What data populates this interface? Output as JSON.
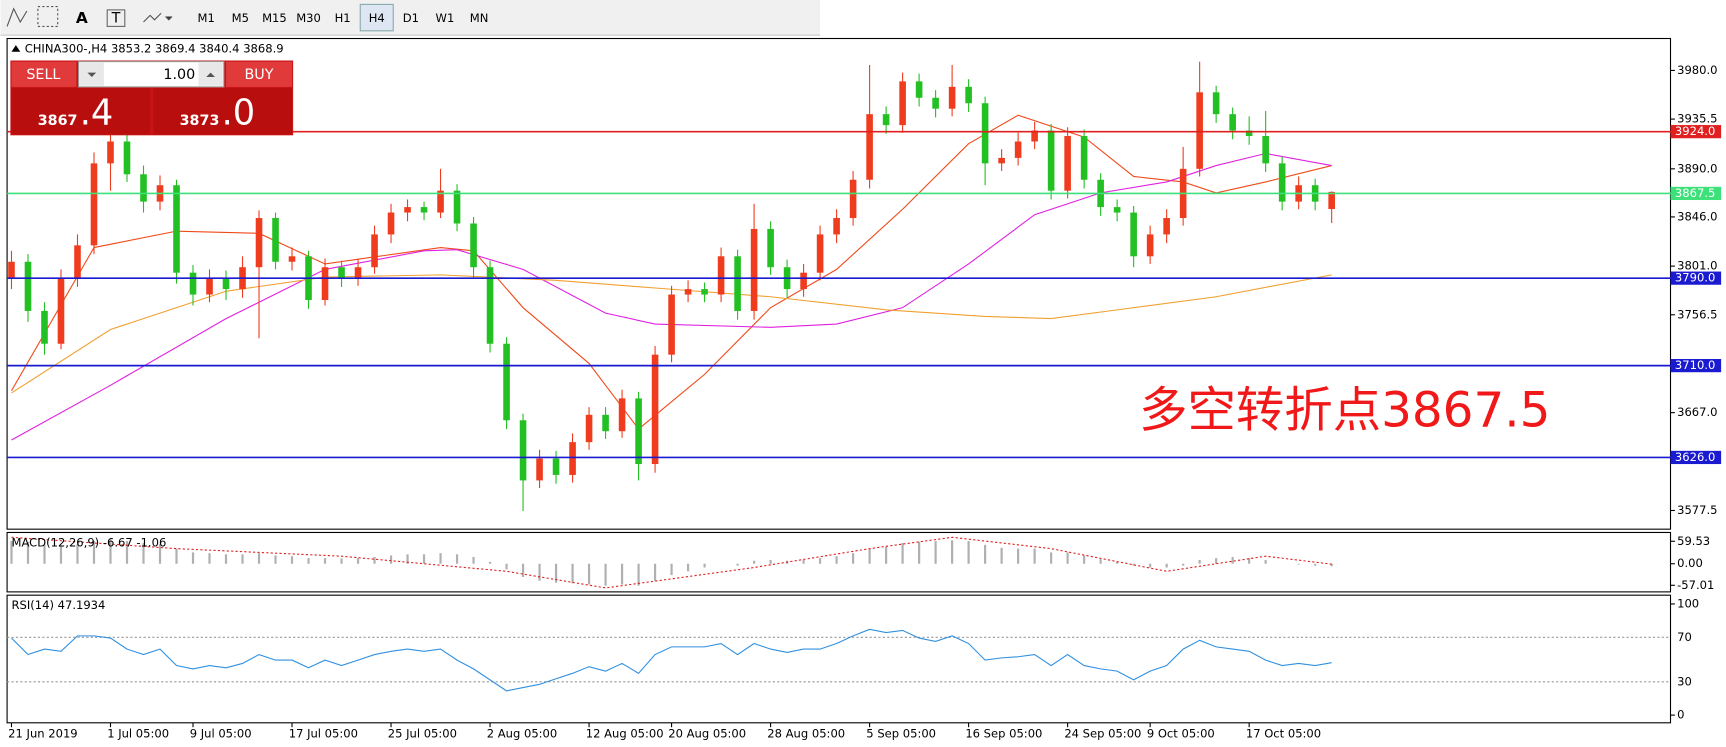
{
  "toolbar": {
    "tools": [
      "A",
      "T"
    ],
    "periods": [
      "M1",
      "M5",
      "M15",
      "M30",
      "H1",
      "H4",
      "D1",
      "W1",
      "MN"
    ],
    "active": "H4"
  },
  "trade_panel": {
    "sell": "SELL",
    "buy": "BUY",
    "lot": "1.00",
    "sell_price": {
      "small": "3867",
      "big": ".4"
    },
    "buy_price": {
      "small": "3873",
      "big": ".0"
    }
  },
  "chart_data": {
    "type": "candlestick",
    "title": "CHINA300-,H4",
    "up_color": "#f03c1e",
    "down_color": "#22c022",
    "ylim": [
      3560.4,
      4009.2
    ],
    "yticks": [
      {
        "value": 3980,
        "label": "3980.0"
      },
      3935.5,
      {
        "value": 3890,
        "label": "3890.0"
      },
      {
        "value": 3846,
        "label": "3846.0"
      },
      {
        "value": 3801,
        "label": "3801.0"
      },
      3756.5,
      {
        "value": 3667,
        "label": "3667.0"
      },
      3577.5
    ],
    "categories": [
      "21 Jun 2019",
      null,
      null,
      null,
      null,
      null,
      "1 Jul 05:00",
      null,
      null,
      null,
      null,
      "9 Jul 05:00",
      null,
      null,
      null,
      null,
      null,
      "17 Jul 05:00",
      null,
      null,
      null,
      null,
      null,
      "25 Jul 05:00",
      null,
      null,
      null,
      null,
      null,
      "2 Aug 05:00",
      null,
      null,
      null,
      null,
      null,
      "12 Aug 05:00",
      null,
      null,
      null,
      null,
      "20 Aug 05:00",
      null,
      null,
      null,
      null,
      null,
      "28 Aug 05:00",
      null,
      null,
      null,
      null,
      null,
      "5 Sep 05:00",
      null,
      null,
      null,
      null,
      null,
      "16 Sep 05:00",
      null,
      null,
      null,
      null,
      null,
      "24 Sep 05:00",
      null,
      null,
      null,
      null,
      "9 Oct 05:00",
      null,
      null,
      null,
      null,
      null,
      "17 Oct 05:00",
      null,
      null,
      null,
      null,
      null
    ],
    "candles": [
      [
        3790,
        3815,
        3780,
        3805
      ],
      [
        3805,
        3812,
        3750,
        3760
      ],
      [
        3760,
        3768,
        3720,
        3730
      ],
      [
        3730,
        3798,
        3725,
        3790
      ],
      [
        3790,
        3830,
        3782,
        3820
      ],
      [
        3820,
        3905,
        3812,
        3895
      ],
      [
        3895,
        3925,
        3870,
        3915
      ],
      [
        3915,
        3922,
        3878,
        3885
      ],
      [
        3885,
        3893,
        3850,
        3860
      ],
      [
        3860,
        3884,
        3852,
        3875
      ],
      [
        3875,
        3880,
        3785,
        3795
      ],
      [
        3795,
        3802,
        3765,
        3775
      ],
      [
        3775,
        3798,
        3768,
        3790
      ],
      [
        3790,
        3797,
        3770,
        3780
      ],
      [
        3780,
        3810,
        3772,
        3800
      ],
      [
        3800,
        3852,
        3735,
        3845
      ],
      [
        3845,
        3850,
        3798,
        3805
      ],
      [
        3805,
        3818,
        3797,
        3810
      ],
      [
        3810,
        3815,
        3762,
        3770
      ],
      [
        3770,
        3808,
        3765,
        3800
      ],
      [
        3800,
        3806,
        3782,
        3790
      ],
      [
        3790,
        3808,
        3783,
        3800
      ],
      [
        3800,
        3838,
        3794,
        3830
      ],
      [
        3830,
        3858,
        3822,
        3850
      ],
      [
        3850,
        3862,
        3842,
        3855
      ],
      [
        3855,
        3860,
        3843,
        3850
      ],
      [
        3850,
        3890,
        3845,
        3870
      ],
      [
        3870,
        3876,
        3833,
        3840
      ],
      [
        3840,
        3846,
        3790,
        3800
      ],
      [
        3800,
        3806,
        3722,
        3730
      ],
      [
        3730,
        3736,
        3652,
        3660
      ],
      [
        3660,
        3666,
        3577,
        3605
      ],
      [
        3605,
        3633,
        3598,
        3625
      ],
      [
        3625,
        3632,
        3602,
        3610
      ],
      [
        3610,
        3648,
        3603,
        3640
      ],
      [
        3640,
        3672,
        3633,
        3665
      ],
      [
        3665,
        3672,
        3643,
        3650
      ],
      [
        3650,
        3688,
        3644,
        3680
      ],
      [
        3680,
        3686,
        3605,
        3620
      ],
      [
        3620,
        3728,
        3612,
        3720
      ],
      [
        3720,
        3783,
        3713,
        3775
      ],
      [
        3775,
        3788,
        3768,
        3780
      ],
      [
        3780,
        3786,
        3768,
        3775
      ],
      [
        3775,
        3818,
        3768,
        3810
      ],
      [
        3810,
        3816,
        3752,
        3760
      ],
      [
        3760,
        3858,
        3752,
        3835
      ],
      [
        3835,
        3842,
        3793,
        3800
      ],
      [
        3800,
        3807,
        3772,
        3780
      ],
      [
        3780,
        3803,
        3773,
        3795
      ],
      [
        3795,
        3838,
        3788,
        3830
      ],
      [
        3830,
        3853,
        3822,
        3845
      ],
      [
        3845,
        3888,
        3838,
        3880
      ],
      [
        3880,
        3985,
        3872,
        3940
      ],
      [
        3940,
        3947,
        3922,
        3930
      ],
      [
        3930,
        3978,
        3923,
        3970
      ],
      [
        3970,
        3977,
        3947,
        3955
      ],
      [
        3955,
        3962,
        3937,
        3945
      ],
      [
        3945,
        3985,
        3938,
        3965
      ],
      [
        3965,
        3972,
        3942,
        3950
      ],
      [
        3950,
        3956,
        3875,
        3895
      ],
      [
        3895,
        3908,
        3888,
        3900
      ],
      [
        3900,
        3923,
        3893,
        3915
      ],
      [
        3915,
        3933,
        3908,
        3925
      ],
      [
        3925,
        3931,
        3862,
        3870
      ],
      [
        3870,
        3928,
        3863,
        3920
      ],
      [
        3920,
        3926,
        3872,
        3880
      ],
      [
        3880,
        3886,
        3847,
        3855
      ],
      [
        3855,
        3862,
        3842,
        3850
      ],
      [
        3850,
        3856,
        3800,
        3810
      ],
      [
        3810,
        3838,
        3803,
        3830
      ],
      [
        3830,
        3853,
        3822,
        3845
      ],
      [
        3845,
        3910,
        3838,
        3890
      ],
      [
        3890,
        3988,
        3883,
        3960
      ],
      [
        3960,
        3966,
        3932,
        3940
      ],
      [
        3940,
        3946,
        3917,
        3925
      ],
      [
        3925,
        3938,
        3912,
        3920
      ],
      [
        3920,
        3943,
        3887,
        3895
      ],
      [
        3895,
        3901,
        3852,
        3860
      ],
      [
        3860,
        3883,
        3853,
        3875
      ],
      [
        3875,
        3881,
        3852,
        3860
      ],
      [
        3853.2,
        3869.4,
        3840.4,
        3868.9
      ]
    ],
    "levels": [
      {
        "value": 3924,
        "label": "3924.0",
        "color": "#e02020"
      },
      {
        "value": 3867.5,
        "label": "3867.5",
        "color": "#3ee07a"
      },
      {
        "value": 3790,
        "label": "3790.0",
        "color": "#1a1ad0"
      },
      {
        "value": 3710,
        "label": "3710.0",
        "color": "#1a1ad0"
      },
      {
        "value": 3626,
        "label": "3626.0",
        "color": "#1a1ad0"
      }
    ],
    "moving_averages": [
      {
        "color": "#f04a1a",
        "x": [
          0,
          5,
          10,
          15,
          19,
          26,
          28,
          31,
          35,
          38,
          42,
          46,
          50,
          54,
          58,
          61,
          65,
          68,
          71,
          73,
          76,
          80
        ],
        "values": [
          3687,
          3818,
          3833,
          3831,
          3803,
          3818,
          3815,
          3763,
          3712,
          3652,
          3702,
          3763,
          3798,
          3853,
          3913,
          3939,
          3919,
          3883,
          3878,
          3868,
          3878,
          3893
        ]
      },
      {
        "color": "#e020e0",
        "x": [
          0,
          6,
          13,
          19,
          25,
          27,
          31,
          36,
          39,
          46,
          50,
          54,
          58,
          62,
          66,
          70,
          73,
          76,
          80
        ],
        "values": [
          3642,
          3692,
          3753,
          3798,
          3815,
          3816,
          3798,
          3758,
          3748,
          3745,
          3748,
          3763,
          3803,
          3848,
          3868,
          3878,
          3893,
          3904,
          3893
        ]
      },
      {
        "color": "#f0a030",
        "x": [
          0,
          6,
          13,
          19,
          26,
          33,
          39,
          46,
          53,
          59,
          63,
          67,
          73,
          80
        ],
        "values": [
          3685,
          3743,
          3778,
          3791,
          3793,
          3788,
          3781,
          3773,
          3761,
          3755,
          3753,
          3761,
          3773,
          3793
        ]
      }
    ],
    "annotation": "多空转折点3867.5"
  },
  "indicators": [
    {
      "type": "macd",
      "name": "MACD(12,26,9)",
      "ylim": [
        -74.5,
        82.8
      ],
      "yticks": [
        59.53,
        {
          "value": 0,
          "label": "0.00"
        },
        -57.01
      ],
      "histogram_color": "#b0b0b0",
      "histogram": [
        60,
        58,
        50,
        48,
        52,
        60,
        65,
        60,
        55,
        52,
        40,
        30,
        28,
        25,
        25,
        28,
        22,
        20,
        15,
        15,
        14,
        15,
        18,
        22,
        25,
        25,
        28,
        25,
        18,
        5,
        -15,
        -35,
        -45,
        -50,
        -52,
        -55,
        -58,
        -55,
        -58,
        -45,
        -30,
        -20,
        -10,
        0,
        -5,
        8,
        10,
        8,
        10,
        15,
        20,
        28,
        40,
        45,
        55,
        58,
        60,
        62,
        60,
        50,
        42,
        40,
        40,
        30,
        30,
        22,
        12,
        5,
        -5,
        -10,
        -10,
        -5,
        10,
        15,
        18,
        15,
        10,
        0,
        -2,
        -5,
        -6.67
      ],
      "signal": {
        "color": "#e02020",
        "x": [
          0,
          10,
          20,
          30,
          36,
          45,
          52,
          57,
          63,
          70,
          76,
          80
        ],
        "values": [
          70,
          40,
          20,
          -20,
          -64,
          -10,
          40,
          70,
          40,
          -20,
          20,
          -1.06
        ]
      }
    },
    {
      "type": "rsi",
      "name": "RSI(14)",
      "ylim": [
        -6.9,
        107.9
      ],
      "yticks": [
        100,
        70,
        30,
        0
      ],
      "color": "#3090e0",
      "values": [
        69.3,
        54.5,
        59.4,
        57.4,
        71.3,
        71.3,
        69.3,
        59.4,
        54.5,
        59.4,
        44.6,
        41.6,
        44.6,
        42.6,
        46.5,
        54.5,
        49.5,
        49.5,
        42.6,
        49.5,
        44.6,
        49.5,
        54.5,
        57.4,
        59.4,
        57.4,
        59.4,
        49.5,
        41.6,
        31.7,
        21.8,
        24.8,
        27.7,
        32.7,
        37.6,
        43.6,
        39.6,
        46.5,
        37.6,
        54.5,
        61.4,
        61.4,
        61.4,
        64.4,
        54.5,
        64.4,
        59.4,
        56.4,
        59.4,
        59.4,
        64.4,
        71.3,
        77.2,
        74.3,
        76.2,
        69.3,
        66.3,
        71.3,
        64.4,
        49.5,
        51.5,
        52.5,
        54.5,
        44.6,
        54.5,
        44.6,
        41.6,
        39.6,
        31.7,
        39.6,
        44.6,
        59.4,
        67.3,
        61.4,
        59.4,
        57.4,
        49.5,
        44.6,
        46.5,
        44.6,
        47.1934
      ]
    }
  ]
}
